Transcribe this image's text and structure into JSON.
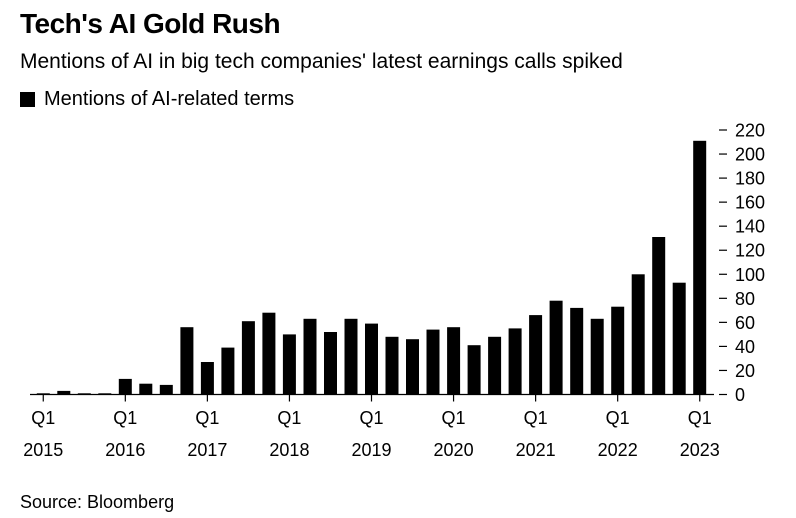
{
  "header": {
    "title": "Tech's AI Gold Rush",
    "subtitle": "Mentions of AI in big tech companies' latest earnings calls spiked"
  },
  "legend": {
    "label": "Mentions of AI-related terms",
    "color": "#000000"
  },
  "footer": {
    "source": "Source: Bloomberg"
  },
  "chart_data": {
    "type": "bar",
    "title": "Tech's AI Gold Rush",
    "subtitle": "Mentions of AI in big tech companies' latest earnings calls spiked",
    "xlabel": "",
    "ylabel": "",
    "ylim": [
      0,
      220
    ],
    "yticks": [
      0,
      20,
      40,
      60,
      80,
      100,
      120,
      140,
      160,
      180,
      200,
      220
    ],
    "y_axis_side": "right",
    "bar_color": "#000000",
    "categories": [
      "Q1 2015",
      "Q2 2015",
      "Q3 2015",
      "Q4 2015",
      "Q1 2016",
      "Q2 2016",
      "Q3 2016",
      "Q4 2016",
      "Q1 2017",
      "Q2 2017",
      "Q3 2017",
      "Q4 2017",
      "Q1 2018",
      "Q2 2018",
      "Q3 2018",
      "Q4 2018",
      "Q1 2019",
      "Q2 2019",
      "Q3 2019",
      "Q4 2019",
      "Q1 2020",
      "Q2 2020",
      "Q3 2020",
      "Q4 2020",
      "Q1 2021",
      "Q2 2021",
      "Q3 2021",
      "Q4 2021",
      "Q1 2022",
      "Q2 2022",
      "Q3 2022",
      "Q4 2022",
      "Q1 2023"
    ],
    "x_tick_labels": [
      {
        "index": 0,
        "quarter": "Q1",
        "year": "2015"
      },
      {
        "index": 4,
        "quarter": "Q1",
        "year": "2016"
      },
      {
        "index": 8,
        "quarter": "Q1",
        "year": "2017"
      },
      {
        "index": 12,
        "quarter": "Q1",
        "year": "2018"
      },
      {
        "index": 16,
        "quarter": "Q1",
        "year": "2019"
      },
      {
        "index": 20,
        "quarter": "Q1",
        "year": "2020"
      },
      {
        "index": 24,
        "quarter": "Q1",
        "year": "2021"
      },
      {
        "index": 28,
        "quarter": "Q1",
        "year": "2022"
      },
      {
        "index": 32,
        "quarter": "Q1",
        "year": "2023"
      }
    ],
    "series": [
      {
        "name": "Mentions of AI-related terms",
        "values": [
          1,
          3,
          1,
          1,
          13,
          9,
          8,
          56,
          27,
          39,
          61,
          68,
          50,
          63,
          52,
          63,
          59,
          48,
          46,
          54,
          56,
          41,
          48,
          55,
          66,
          78,
          72,
          63,
          73,
          100,
          131,
          93,
          211
        ]
      }
    ]
  }
}
